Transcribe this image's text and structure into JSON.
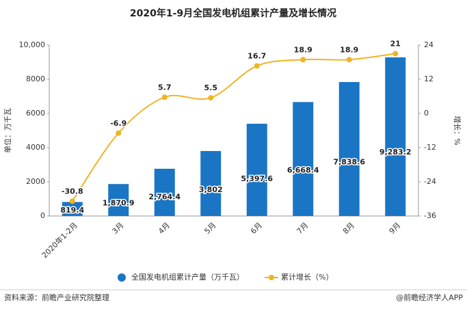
{
  "chart_data": {
    "type": "bar",
    "title": "2020年1-9月全国发电机组累计产量及增长情况",
    "categories": [
      "2020年1-2月",
      "3月",
      "4月",
      "5月",
      "6月",
      "7月",
      "8月",
      "9月"
    ],
    "series": [
      {
        "name": "全国发电机组累计产量（万千瓦）",
        "type": "bar",
        "color": "#1a75c4",
        "values": [
          819.4,
          1870.9,
          2764.4,
          3802,
          5397.6,
          6668.4,
          7838.6,
          9283.2
        ],
        "value_labels": [
          "819.4",
          "1,870.9",
          "2,764.4",
          "3,802",
          "5,397.6",
          "6,668.4",
          "7,838.6",
          "9,283.2"
        ]
      },
      {
        "name": "累计增长（%）",
        "type": "line",
        "color": "#f0b323",
        "axis": "y2",
        "values": [
          -30.8,
          -6.9,
          5.7,
          5.5,
          16.7,
          18.9,
          18.9,
          21
        ]
      }
    ],
    "ylabel": "单位：万千瓦",
    "y2label": "增长：%",
    "ylim": [
      0,
      10000
    ],
    "yticks": [
      0,
      2000,
      4000,
      6000,
      8000,
      {
        "value": 10000,
        "label": "10,000"
      }
    ],
    "y2lim": [
      -36,
      24
    ],
    "y2ticks": [
      -36,
      -24,
      -12,
      0,
      12,
      24
    ],
    "legend": "bottom",
    "source": "资料来源：前瞻产业研究院整理",
    "credit": "@前瞻经济学人APP"
  }
}
